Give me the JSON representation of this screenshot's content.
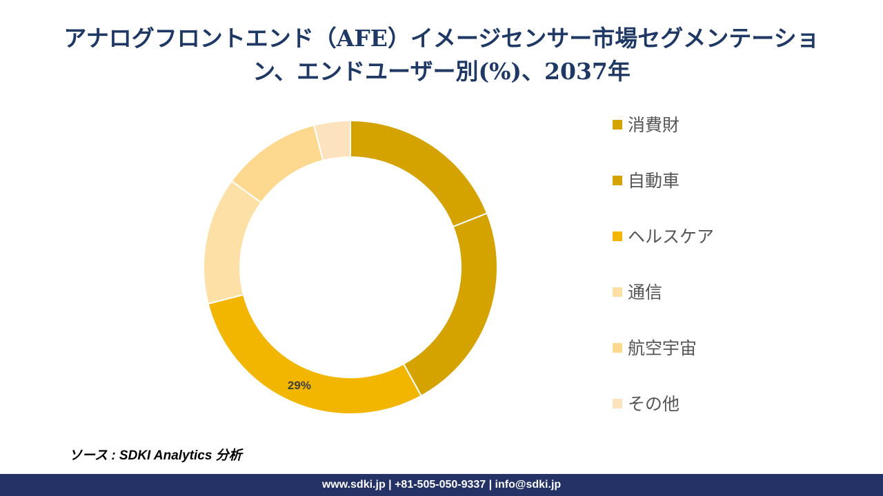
{
  "title": {
    "line1": "アナログフロントエンド（AFE）イメージセンサー市場セグメンテーショ",
    "line2": "ン、エンドユーザー別(%)、2037年"
  },
  "chart_data": {
    "type": "pie",
    "donut": true,
    "categories": [
      "消費財",
      "自動車",
      "ヘルスケア",
      "通信",
      "航空宇宙",
      "その他"
    ],
    "values": [
      19,
      23,
      29,
      14,
      11,
      4
    ],
    "colors": [
      "#d4a300",
      "#d4a300",
      "#f2b600",
      "#fde0a6",
      "#fcd98f",
      "#fde3bd"
    ],
    "data_labels": [
      "",
      "",
      "29%",
      "",
      "",
      ""
    ],
    "legend_position": "right"
  },
  "source": "ソース : SDKI Analytics 分析",
  "footer": "www.sdki.jp | +81-505-050-9337 | info@sdki.jp"
}
